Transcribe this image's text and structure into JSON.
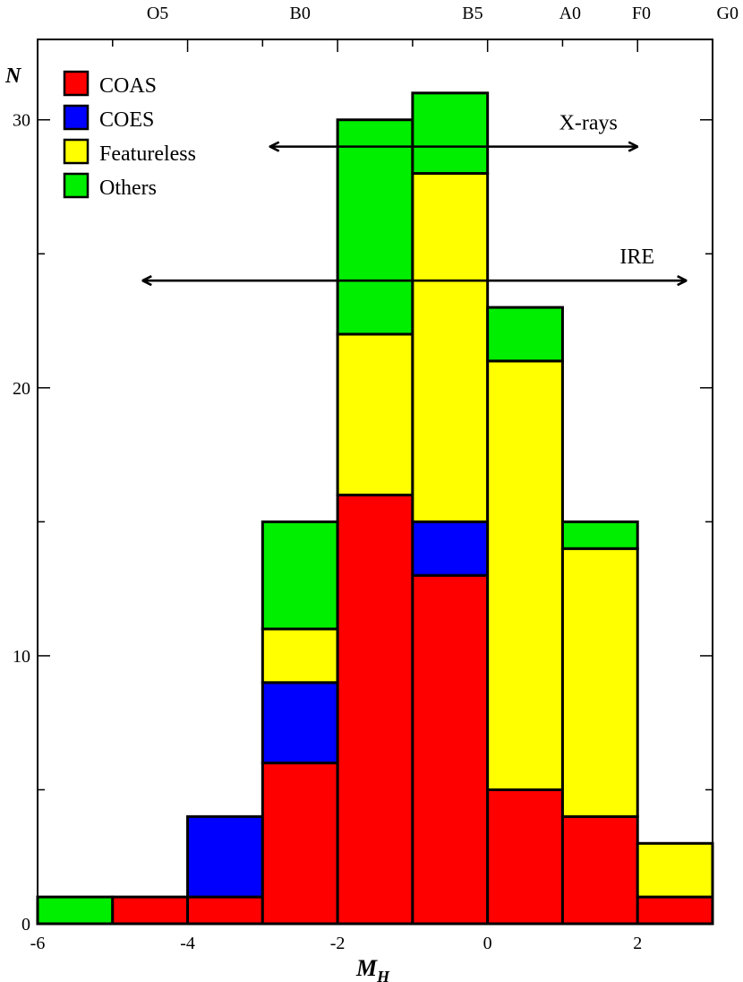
{
  "chart_data": {
    "type": "bar",
    "stacked": true,
    "xlabel_main": "M",
    "xlabel_sub": "H",
    "ylabel": "N",
    "xlim": [
      -6,
      3
    ],
    "ylim": [
      0,
      33
    ],
    "x_ticks": [
      -6,
      -4,
      -2,
      0,
      2
    ],
    "y_ticks": [
      0,
      10,
      20,
      30
    ],
    "bin_width": 1,
    "bins_left": [
      -6,
      -5,
      -4,
      -3,
      -2,
      -1,
      0,
      1,
      2
    ],
    "series": [
      {
        "name": "COAS",
        "color": "#ff0000",
        "values": [
          0,
          1,
          1,
          6,
          16,
          13,
          5,
          4,
          1
        ]
      },
      {
        "name": "COES",
        "color": "#0000ff",
        "values": [
          0,
          0,
          3,
          3,
          0,
          2,
          0,
          0,
          0
        ]
      },
      {
        "name": "Featureless",
        "color": "#ffff00",
        "values": [
          0,
          0,
          0,
          2,
          6,
          13,
          16,
          10,
          2
        ]
      },
      {
        "name": "Others",
        "color": "#00ee00",
        "values": [
          1,
          0,
          0,
          4,
          8,
          3,
          2,
          1,
          0
        ]
      }
    ],
    "legend_position": "top-left",
    "spectral_types": [
      {
        "label": "O5",
        "x": -4.4
      },
      {
        "label": "B0",
        "x": -2.5
      },
      {
        "label": "B5",
        "x": -0.2
      },
      {
        "label": "A0",
        "x": 1.1
      },
      {
        "label": "F0",
        "x": 2.05
      },
      {
        "label": "G0",
        "x": 3.2
      }
    ],
    "annotations": [
      {
        "type": "double-arrow",
        "label": "X-rays",
        "x_start": -2.9,
        "x_end": 2.0,
        "y": 29
      },
      {
        "type": "double-arrow",
        "label": "IRE",
        "x_start": -4.6,
        "x_end": 2.65,
        "y": 24
      }
    ]
  }
}
